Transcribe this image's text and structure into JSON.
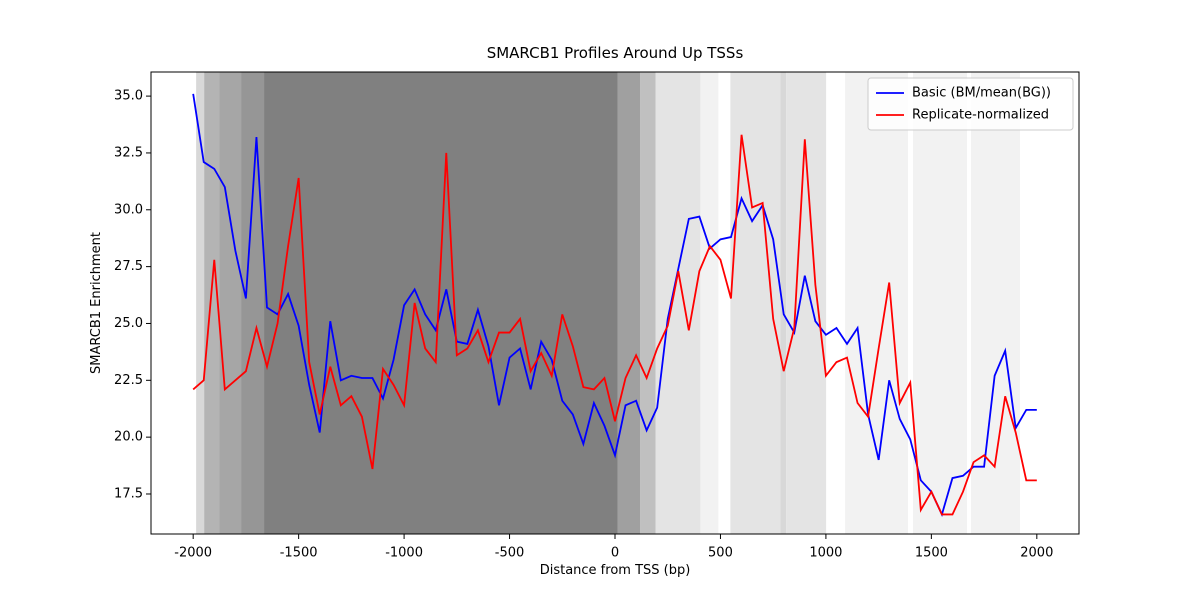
{
  "chart_data": {
    "type": "line",
    "title": "SMARCB1 Profiles Around Up TSSs",
    "xlabel": "Distance from TSS (bp)",
    "ylabel": "SMARCB1 Enrichment",
    "x": [
      -2000,
      -1950,
      -1900,
      -1850,
      -1800,
      -1750,
      -1700,
      -1650,
      -1600,
      -1550,
      -1500,
      -1450,
      -1400,
      -1350,
      -1300,
      -1250,
      -1200,
      -1150,
      -1100,
      -1050,
      -1000,
      -950,
      -900,
      -850,
      -800,
      -750,
      -700,
      -650,
      -600,
      -550,
      -500,
      -450,
      -400,
      -350,
      -300,
      -250,
      -200,
      -150,
      -100,
      -50,
      0,
      50,
      100,
      150,
      200,
      250,
      300,
      350,
      400,
      450,
      500,
      550,
      600,
      650,
      700,
      750,
      800,
      850,
      900,
      950,
      1000,
      1050,
      1100,
      1150,
      1200,
      1250,
      1300,
      1350,
      1400,
      1450,
      1500,
      1550,
      1600,
      1650,
      1700,
      1750,
      1800,
      1850,
      1900,
      1950,
      2000
    ],
    "series": [
      {
        "name": "Basic (BM/mean(BG))",
        "color": "#0000ff",
        "values": [
          35.1,
          32.1,
          31.8,
          31.0,
          28.2,
          26.1,
          33.2,
          25.7,
          25.4,
          26.3,
          24.9,
          22.3,
          20.2,
          25.1,
          22.5,
          22.7,
          22.6,
          22.6,
          21.7,
          23.4,
          25.8,
          26.5,
          25.4,
          24.7,
          26.5,
          24.2,
          24.1,
          25.6,
          24.0,
          21.4,
          23.5,
          23.9,
          22.1,
          24.2,
          23.4,
          21.6,
          21.0,
          19.7,
          21.5,
          20.5,
          19.2,
          21.4,
          21.6,
          20.3,
          21.3,
          25.2,
          27.4,
          29.6,
          29.7,
          28.3,
          28.7,
          28.8,
          30.5,
          29.5,
          30.2,
          28.7,
          25.4,
          24.6,
          27.1,
          25.1,
          24.5,
          24.8,
          24.1,
          24.8,
          21.0,
          19.0,
          22.5,
          20.8,
          19.9,
          18.1,
          17.6,
          16.6,
          18.2,
          18.3,
          18.7,
          18.7,
          22.7,
          23.8,
          20.4,
          21.2,
          21.2
        ]
      },
      {
        "name": "Replicate-normalized",
        "color": "#ff0000",
        "values": [
          22.1,
          22.5,
          27.8,
          22.1,
          22.5,
          22.9,
          24.8,
          23.1,
          25.0,
          28.4,
          31.4,
          23.3,
          21.0,
          23.1,
          21.4,
          21.8,
          20.9,
          18.6,
          23.0,
          22.3,
          21.4,
          25.9,
          23.9,
          23.3,
          32.5,
          23.6,
          23.9,
          24.7,
          23.3,
          24.6,
          24.6,
          25.2,
          22.9,
          23.7,
          22.7,
          25.4,
          24.0,
          22.2,
          22.1,
          22.6,
          20.7,
          22.6,
          23.6,
          22.6,
          23.9,
          24.9,
          27.3,
          24.7,
          27.3,
          28.4,
          27.8,
          26.1,
          33.3,
          30.1,
          30.3,
          25.2,
          22.9,
          24.8,
          33.1,
          26.7,
          22.7,
          23.3,
          23.5,
          21.5,
          20.9,
          23.9,
          26.8,
          21.5,
          22.4,
          16.8,
          17.6,
          16.6,
          16.6,
          17.6,
          18.9,
          19.2,
          18.7,
          21.8,
          20.2,
          18.1,
          18.1
        ]
      }
    ],
    "shaded_regions": [
      {
        "x": [
          -1986,
          -1948
        ],
        "color": "#d8d8d8"
      },
      {
        "x": [
          -1948,
          -1877
        ],
        "color": "#b4b4b4"
      },
      {
        "x": [
          -1877,
          -1773
        ],
        "color": "#a6a6a6"
      },
      {
        "x": [
          -1773,
          -1664
        ],
        "color": "#969696"
      },
      {
        "x": [
          -1664,
          12
        ],
        "color": "#808080"
      },
      {
        "x": [
          12,
          120
        ],
        "color": "#a0a0a0"
      },
      {
        "x": [
          120,
          192
        ],
        "color": "#c0c0c0"
      },
      {
        "x": [
          192,
          405
        ],
        "color": "#e4e4e4"
      },
      {
        "x": [
          405,
          490
        ],
        "color": "#f2f2f2"
      },
      {
        "x": [
          547,
          784
        ],
        "color": "#e4e4e4"
      },
      {
        "x": [
          784,
          812
        ],
        "color": "#d8d8d8"
      },
      {
        "x": [
          812,
          1001
        ],
        "color": "#e4e4e4"
      },
      {
        "x": [
          1091,
          1389
        ],
        "color": "#f2f2f2"
      },
      {
        "x": [
          1413,
          1669
        ],
        "color": "#f2f2f2"
      },
      {
        "x": [
          1688,
          1920
        ],
        "color": "#f2f2f2"
      }
    ],
    "xlim": [
      -2200,
      2200
    ],
    "ylim": [
      15.74,
      36.06
    ],
    "xticks": [
      -2000,
      -1500,
      -1000,
      -500,
      0,
      500,
      1000,
      1500,
      2000
    ],
    "yticks": [
      17.5,
      {
        "value": 20,
        "label": "20.0"
      },
      22.5,
      {
        "value": 25,
        "label": "25.0"
      },
      27.5,
      {
        "value": 30,
        "label": "30.0"
      },
      32.5,
      {
        "value": 35,
        "label": "35.0"
      }
    ],
    "legend": "upper right"
  }
}
